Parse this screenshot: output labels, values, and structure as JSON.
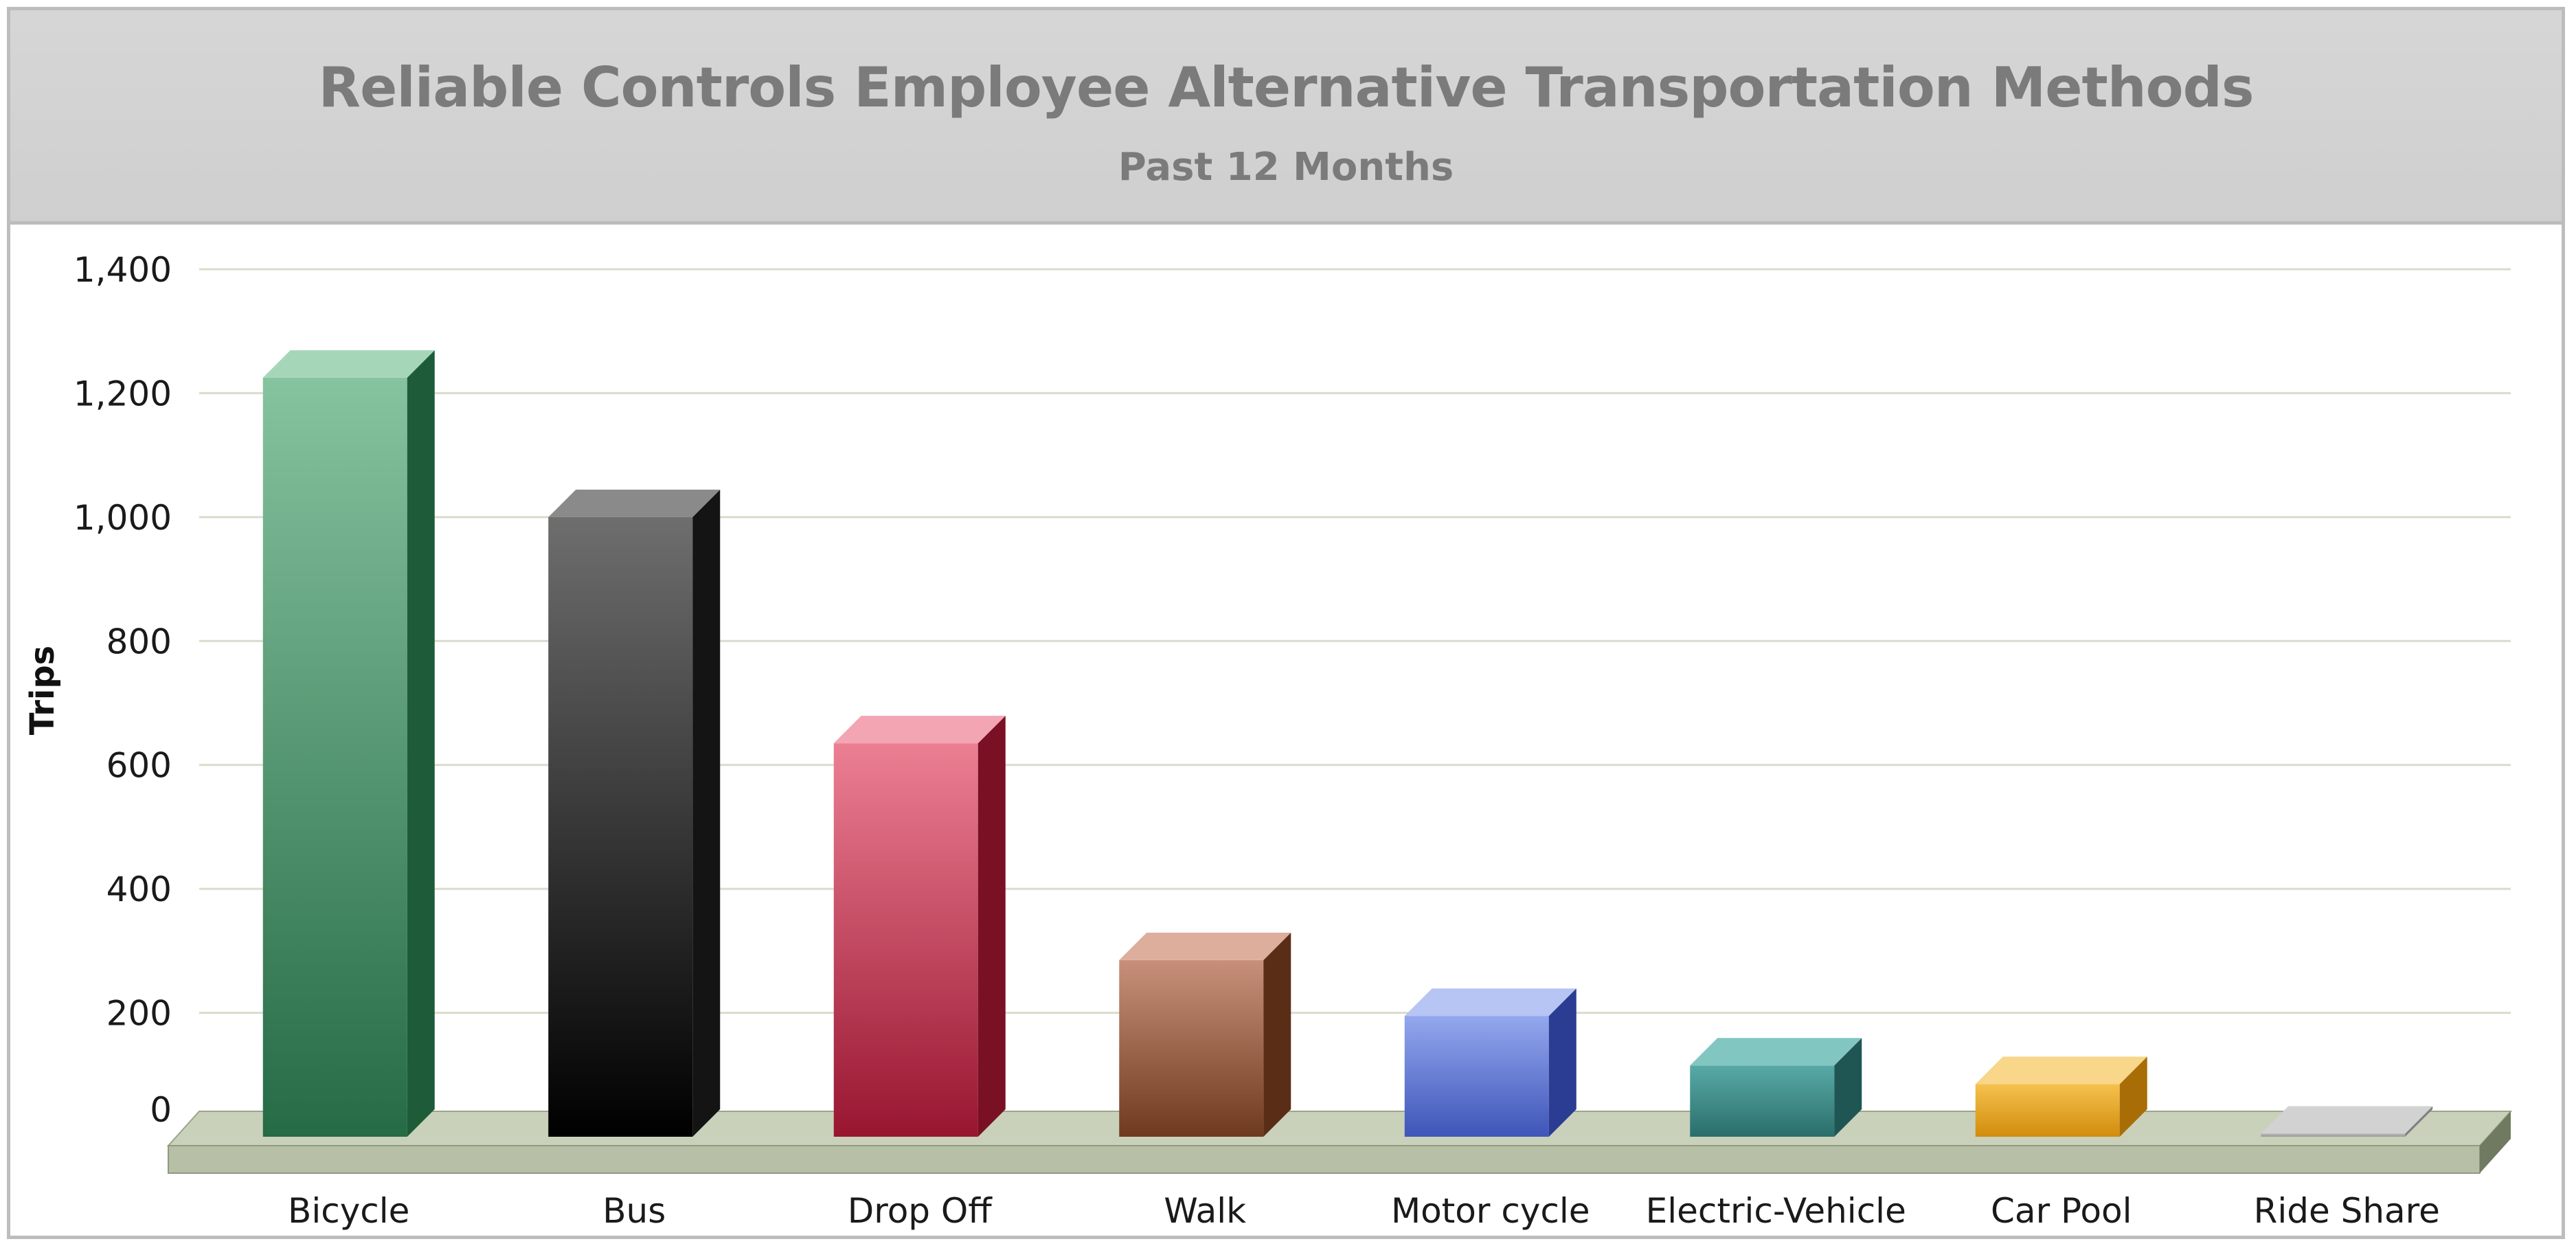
{
  "chart_data": {
    "type": "bar",
    "title": "Reliable Controls Employee Alternative Transportation Methods",
    "subtitle": "Past 12 Months",
    "xlabel": "",
    "ylabel": "Trips",
    "ylim": [
      0,
      1400
    ],
    "yticks": [
      0,
      200,
      400,
      600,
      800,
      1000,
      1200,
      1400
    ],
    "ytick_labels": [
      "0",
      "200",
      "400",
      "600",
      "800",
      "1,000",
      "1,200",
      "1,400"
    ],
    "grid": true,
    "categories": [
      "Bicycle",
      "Bus",
      "Drop Off",
      "Walk",
      "Motor cycle",
      "Electric-Vehicle",
      "Car Pool",
      "Ride Share"
    ],
    "values": [
      1225,
      1000,
      635,
      285,
      195,
      115,
      85,
      5
    ],
    "colors": [
      {
        "front_top": "#86c39f",
        "front_bottom": "#256b45",
        "side": "#1e5c39",
        "top": "#a6d6b8"
      },
      {
        "front_top": "#6e6e6e",
        "front_bottom": "#000000",
        "side": "#141414",
        "top": "#8a8a8a"
      },
      {
        "front_top": "#ec7f93",
        "front_bottom": "#981530",
        "side": "#7a1024",
        "top": "#f3a5b3"
      },
      {
        "front_top": "#c8907a",
        "front_bottom": "#6e3a1f",
        "side": "#5a2d17",
        "top": "#dcae9b"
      },
      {
        "front_top": "#93a8ee",
        "front_bottom": "#3f55b8",
        "side": "#2b3d92",
        "top": "#b6c5f4"
      },
      {
        "front_top": "#58aaa7",
        "front_bottom": "#2a6e6b",
        "side": "#1f5654",
        "top": "#82c6c2"
      },
      {
        "front_top": "#f5c24f",
        "front_bottom": "#d18c0b",
        "side": "#a86d06",
        "top": "#f8d68a"
      },
      {
        "front_top": "#b9b9b9",
        "front_bottom": "#9a9a9a",
        "side": "#808080",
        "top": "#d2d2d2"
      }
    ]
  }
}
